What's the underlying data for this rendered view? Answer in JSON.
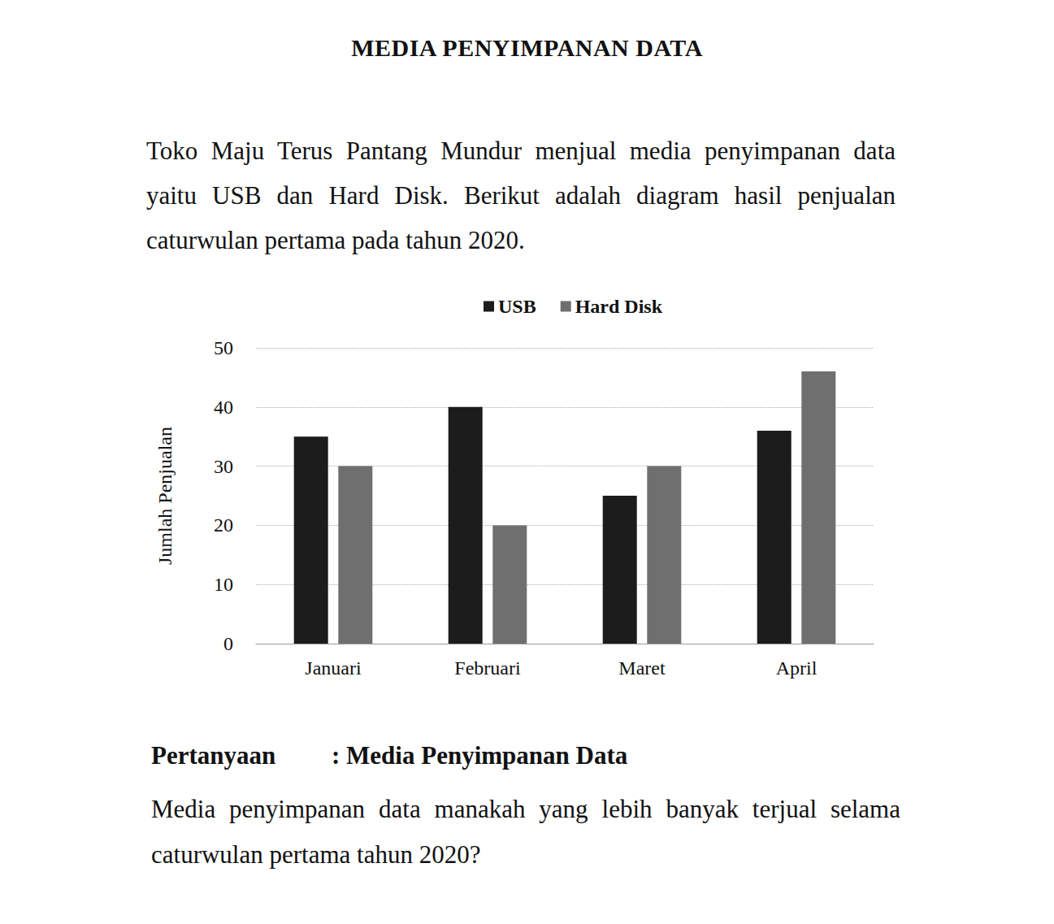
{
  "header": {
    "title": "MEDIA PENYIMPANAN DATA"
  },
  "paragraph": "Toko Maju Terus Pantang Mundur menjual media penyimpanan data yaitu USB dan Hard Disk. Berikut adalah diagram hasil penjualan caturwulan pertama pada tahun 2020.",
  "chart_data": {
    "type": "bar",
    "y_label": "Jumlah Penjualan",
    "categories": [
      "Januari",
      "Februari",
      "Maret",
      "April"
    ],
    "series": [
      {
        "name": "USB",
        "color": "#1c1c1c",
        "values": [
          35,
          40,
          25,
          36
        ]
      },
      {
        "name": "Hard Disk",
        "color": "#6f6f6f",
        "values": [
          30,
          20,
          30,
          46
        ]
      }
    ],
    "ylim": [
      0,
      50
    ],
    "yticks": [
      0,
      10,
      20,
      30,
      40,
      50
    ],
    "grid": true,
    "legend": "top"
  },
  "question": {
    "label": "Pertanyaan",
    "topic": ": Media Penyimpanan Data",
    "text": "Media penyimpanan data manakah yang lebih banyak terjual selama caturwulan pertama tahun 2020?"
  }
}
